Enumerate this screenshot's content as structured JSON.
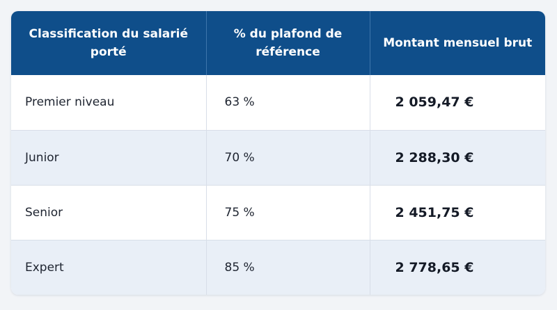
{
  "table": {
    "headers": [
      "Classification du salarié porté",
      "% du plafond de référence",
      "Montant mensuel brut"
    ],
    "rows": [
      {
        "classification": "Premier niveau",
        "percent": "63 %",
        "amount": "2 059,47 €"
      },
      {
        "classification": "Junior",
        "percent": "70 %",
        "amount": "2 288,30 €"
      },
      {
        "classification": "Senior",
        "percent": "75 %",
        "amount": "2 451,75 €"
      },
      {
        "classification": "Expert",
        "percent": "85 %",
        "amount": "2 778,65 €"
      }
    ]
  },
  "colors": {
    "header_bg": "#0f4e8a",
    "header_text": "#ffffff",
    "row_alt_bg": "#e9eff7",
    "border": "#d8dee8"
  }
}
